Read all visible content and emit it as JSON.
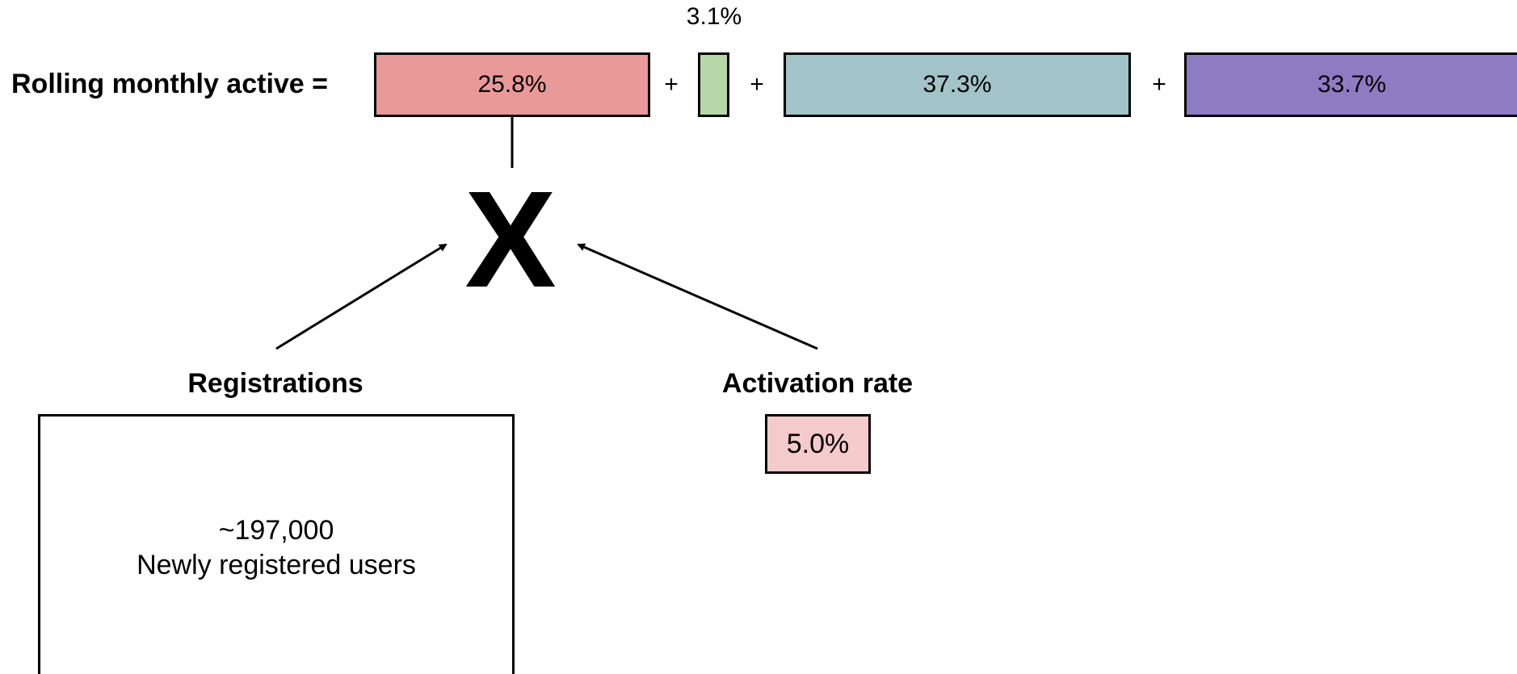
{
  "equation": {
    "label": "Rolling monthly active =",
    "operator": "+",
    "segments": [
      {
        "value_label": "25.8%",
        "share_percent": 25.8,
        "color": "#ea9999"
      },
      {
        "value_label": "3.1%",
        "share_percent": 3.1,
        "color": "#b6d7a8"
      },
      {
        "value_label": "37.3%",
        "share_percent": 37.3,
        "color": "#a2c4c9"
      },
      {
        "value_label": "33.7%",
        "share_percent": 33.7,
        "color": "#8e7cc3"
      }
    ]
  },
  "multiply_symbol": "X",
  "registrations": {
    "heading": "Registrations",
    "value": "~197,000",
    "caption": "Newly registered users"
  },
  "activation_rate": {
    "heading": "Activation rate",
    "value": "5.0%",
    "color": "#f4caca"
  },
  "colors": {
    "outline": "#000000",
    "background": "#ffffff"
  }
}
